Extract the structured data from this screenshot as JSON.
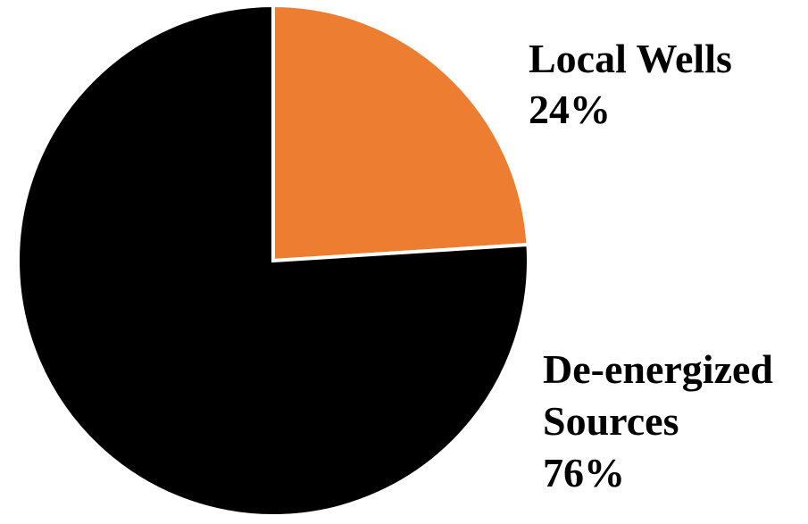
{
  "chart_data": {
    "type": "pie",
    "title": "",
    "start_angle_deg": 0,
    "direction": "clockwise",
    "slices": [
      {
        "label_lines": [
          "Local Wells"
        ],
        "percent_label": "24%",
        "value": 24,
        "color": "#ED7D31"
      },
      {
        "label_lines": [
          "De-energized",
          "Sources"
        ],
        "percent_label": "76%",
        "value": 76,
        "color": "#000000"
      }
    ],
    "slice_border_color": "#FFFFFF",
    "legend": "none"
  }
}
